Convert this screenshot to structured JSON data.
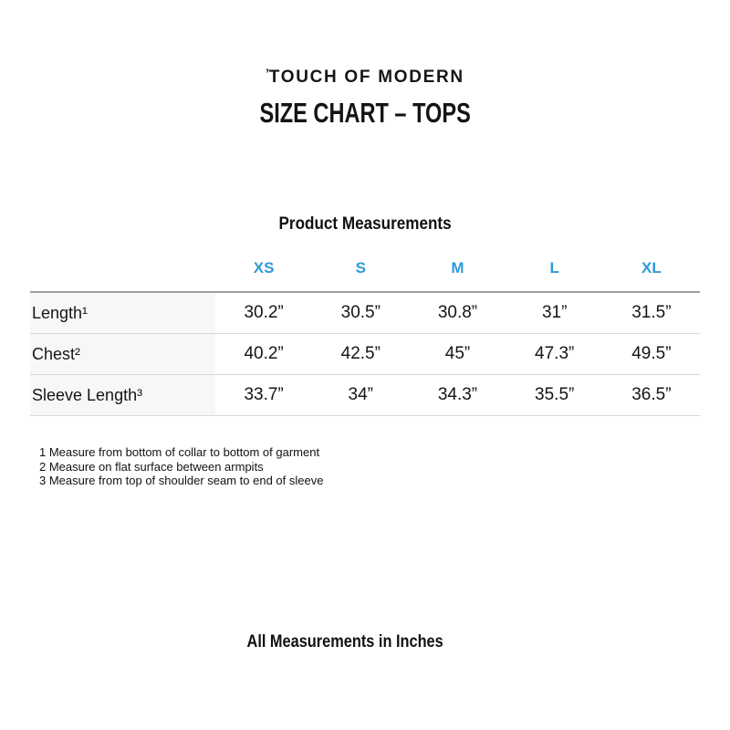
{
  "brand": {
    "logo_tick": "’",
    "logo_text": "TOUCH OF MODERN"
  },
  "title": "SIZE CHART – TOPS",
  "table": {
    "caption": "Product Measurements",
    "size_headers": [
      "XS",
      "S",
      "M",
      "L",
      "XL"
    ],
    "rows": [
      {
        "label": "Length¹",
        "values": [
          "30.2”",
          "30.5”",
          "30.8”",
          "31”",
          "31.5”"
        ]
      },
      {
        "label": "Chest²",
        "values": [
          "40.2”",
          "42.5”",
          "45”",
          "47.3”",
          "49.5”"
        ]
      },
      {
        "label": "Sleeve Length³",
        "values": [
          "33.7”",
          "34”",
          "34.3”",
          "35.5”",
          "36.5”"
        ]
      }
    ]
  },
  "footnotes": [
    "1 Measure from bottom of collar to bottom of garment",
    "2 Measure on flat surface between armpits",
    "3 Measure from top of shoulder seam to end of sleeve"
  ],
  "bottom_note": "All Measurements in Inches",
  "colors": {
    "accent": "#2c9bd7",
    "line_dark": "#9e9e9e",
    "line_light": "#d9d9d9",
    "label_bg": "#f7f7f7",
    "text": "#1b1b1b"
  }
}
